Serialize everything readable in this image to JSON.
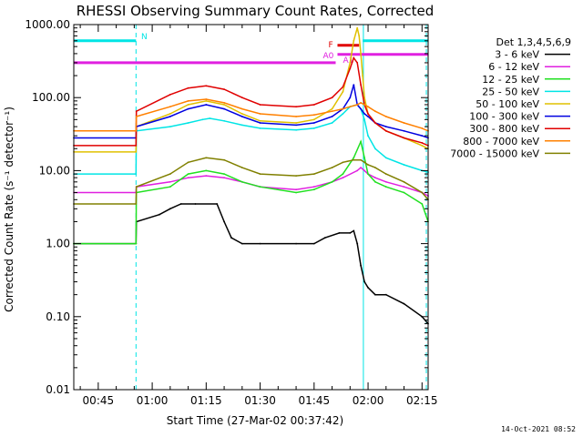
{
  "chart_data": {
    "type": "line",
    "title": "RHESSI Observing Summary Count Rates, Corrected",
    "xlabel": "Start Time (27-Mar-02 00:37:42)",
    "ylabel": "Corrected Count Rate (s⁻¹ detector⁻¹)",
    "y_scale": "log",
    "ylim": [
      0.01,
      1000
    ],
    "xlim_minutes": [
      38.2,
      136.7
    ],
    "y_ticks": [
      {
        "value": 1000,
        "label": "1000.00"
      },
      {
        "value": 100,
        "label": "100.00"
      },
      {
        "value": 10,
        "label": "10.00"
      },
      {
        "value": 1,
        "label": "1.00"
      },
      {
        "value": 0.1,
        "label": "0.10"
      },
      {
        "value": 0.01,
        "label": "0.01"
      }
    ],
    "x_ticks": [
      {
        "value": 45,
        "label": "00:45"
      },
      {
        "value": 60,
        "label": "01:00"
      },
      {
        "value": 75,
        "label": "01:15"
      },
      {
        "value": 90,
        "label": "01:30"
      },
      {
        "value": 105,
        "label": "01:45"
      },
      {
        "value": 120,
        "label": "02:00"
      },
      {
        "value": 135,
        "label": "02:15"
      }
    ],
    "legend_title": "Det 1,3,4,5,6,9",
    "legend_position": "right",
    "series": [
      {
        "name": "3 - 6 keV",
        "color": "#000000",
        "x": [
          38.2,
          55.5,
          55.6,
          62,
          65,
          68,
          72,
          78,
          80,
          82,
          85,
          90,
          100,
          105,
          108,
          112,
          115,
          116,
          117,
          118,
          119,
          120,
          122,
          125,
          130,
          135,
          136.7
        ],
        "y": [
          1.0,
          1.0,
          2.0,
          2.5,
          3.0,
          3.5,
          3.5,
          3.5,
          2.0,
          1.2,
          1.0,
          1.0,
          1.0,
          1.0,
          1.2,
          1.4,
          1.4,
          1.5,
          1.0,
          0.5,
          0.3,
          0.25,
          0.2,
          0.2,
          0.15,
          0.1,
          0.08
        ]
      },
      {
        "name": "6 - 12 keV",
        "color": "#e020e0",
        "x": [
          38.2,
          55.5,
          55.6,
          65,
          70,
          75,
          80,
          85,
          90,
          100,
          105,
          110,
          113,
          117,
          118,
          119,
          120,
          122,
          125,
          130,
          135,
          136.7
        ],
        "y": [
          5.0,
          5.0,
          6.0,
          7.0,
          8.0,
          8.5,
          8.0,
          7.0,
          6.0,
          5.5,
          6.0,
          7.0,
          8.0,
          10.0,
          11.0,
          10.0,
          9.0,
          8.0,
          7.0,
          6.0,
          5.0,
          4.5
        ]
      },
      {
        "name": "12 - 25 keV",
        "color": "#20e020",
        "x": [
          38.2,
          55.5,
          55.6,
          65,
          70,
          75,
          80,
          85,
          90,
          100,
          105,
          110,
          113,
          116,
          118,
          119,
          120,
          122,
          125,
          130,
          135,
          136.7
        ],
        "y": [
          1.0,
          1.0,
          5.0,
          6.0,
          9.0,
          10.0,
          9.0,
          7.0,
          6.0,
          5.0,
          5.5,
          7.0,
          9.0,
          15.0,
          25.0,
          15.0,
          9.0,
          7.0,
          6.0,
          5.0,
          3.5,
          2.0
        ]
      },
      {
        "name": "25 - 50 keV",
        "color": "#00e5e5",
        "x": [
          38.2,
          55.5,
          55.6,
          65,
          70,
          74,
          76,
          80,
          85,
          90,
          100,
          105,
          110,
          113,
          115,
          117,
          118,
          119,
          120,
          122,
          125,
          130,
          135,
          136.7
        ],
        "y": [
          9.0,
          9.0,
          35.0,
          40.0,
          45.0,
          50.0,
          52.0,
          48.0,
          42.0,
          38.0,
          36.0,
          38.0,
          45.0,
          60.0,
          75.0,
          80.0,
          70.0,
          50.0,
          30.0,
          20.0,
          15.0,
          12.0,
          10.0,
          9.5
        ]
      },
      {
        "name": "50 - 100 keV",
        "color": "#e0c000",
        "x": [
          38.2,
          55.5,
          55.6,
          65,
          70,
          75,
          80,
          85,
          90,
          100,
          105,
          110,
          113,
          115,
          116,
          117,
          117.5,
          118,
          118.5,
          119,
          120,
          122,
          125,
          130,
          135,
          136.7
        ],
        "y": [
          18.0,
          18.0,
          40.0,
          60.0,
          80.0,
          90.0,
          80.0,
          60.0,
          48.0,
          45.0,
          50.0,
          70.0,
          120.0,
          300.0,
          600.0,
          900.0,
          700.0,
          400.0,
          200.0,
          100.0,
          60.0,
          45.0,
          35.0,
          28.0,
          22.0,
          20.0
        ]
      },
      {
        "name": "100 - 300 keV",
        "color": "#0000e0",
        "x": [
          38.2,
          55.5,
          55.6,
          65,
          70,
          75,
          80,
          85,
          90,
          100,
          105,
          110,
          113,
          115,
          116,
          117,
          118,
          119,
          120,
          122,
          125,
          130,
          135,
          136.7
        ],
        "y": [
          28.0,
          28.0,
          40.0,
          55.0,
          70.0,
          80.0,
          70.0,
          55.0,
          45.0,
          42.0,
          45.0,
          55.0,
          70.0,
          100.0,
          150.0,
          80.0,
          70.0,
          60.0,
          55.0,
          45.0,
          40.0,
          35.0,
          30.0,
          28.0
        ]
      },
      {
        "name": "300 - 800 keV",
        "color": "#e00000",
        "x": [
          38.2,
          55.5,
          55.6,
          65,
          70,
          75,
          80,
          85,
          90,
          100,
          105,
          110,
          113,
          115,
          116,
          117,
          118,
          119,
          120,
          122,
          125,
          130,
          135,
          136.7
        ],
        "y": [
          22.0,
          22.0,
          65.0,
          110.0,
          135.0,
          145.0,
          130.0,
          100.0,
          80.0,
          75.0,
          80.0,
          100.0,
          140.0,
          250.0,
          350.0,
          300.0,
          150.0,
          80.0,
          60.0,
          45.0,
          35.0,
          28.0,
          24.0,
          22.0
        ]
      },
      {
        "name": "800 - 7000 keV",
        "color": "#ff8000",
        "x": [
          38.2,
          55.5,
          55.6,
          65,
          70,
          75,
          80,
          85,
          90,
          100,
          105,
          110,
          113,
          115,
          117,
          118,
          119,
          120,
          122,
          125,
          130,
          135,
          136.7
        ],
        "y": [
          35.0,
          35.0,
          55.0,
          75.0,
          90.0,
          95.0,
          85.0,
          70.0,
          60.0,
          55.0,
          58.0,
          65.0,
          70.0,
          75.0,
          80.0,
          85.0,
          80.0,
          75.0,
          65.0,
          55.0,
          45.0,
          38.0,
          35.0
        ]
      },
      {
        "name": "7000 - 15000 keV",
        "color": "#808000",
        "x": [
          38.2,
          55.5,
          55.6,
          65,
          70,
          75,
          80,
          85,
          90,
          100,
          105,
          110,
          113,
          116,
          118,
          119,
          120,
          122,
          125,
          130,
          135,
          136.7
        ],
        "y": [
          3.5,
          3.5,
          6.0,
          9.0,
          13.0,
          15.0,
          14.0,
          11.0,
          9.0,
          8.5,
          9.0,
          11.0,
          13.0,
          14.0,
          14.0,
          13.0,
          12.0,
          11.0,
          9.0,
          7.0,
          5.0,
          4.0
        ]
      }
    ],
    "event_lines": [
      {
        "color": "#00e5e5",
        "x": 38.2,
        "style": "dashed"
      },
      {
        "color": "#00e5e5",
        "x": 55.5,
        "style": "dashed"
      },
      {
        "color": "#00e5e5",
        "x": 118.7,
        "style": "solid"
      },
      {
        "color": "#00e5e5",
        "x": 136.2,
        "style": "dashed"
      }
    ],
    "bars": [
      {
        "label": "N",
        "color": "#00e5e5",
        "x": [
          38.2,
          55.5
        ],
        "y": 600
      },
      {
        "label": "",
        "color": "#00e5e5",
        "x": [
          118.5,
          136.7
        ],
        "y": 600
      },
      {
        "label": "F",
        "color": "#e00000",
        "x": [
          111.5,
          117.5
        ],
        "y": 520
      },
      {
        "label": "A0",
        "color": "#e020e0",
        "x": [
          38.2,
          111.0
        ],
        "y": 300
      },
      {
        "label": "A1",
        "color": "#e020e0",
        "x": [
          111.5,
          136.7
        ],
        "y": 390
      }
    ]
  },
  "footer": {
    "date_stamp": "14-Oct-2021 08:52"
  }
}
